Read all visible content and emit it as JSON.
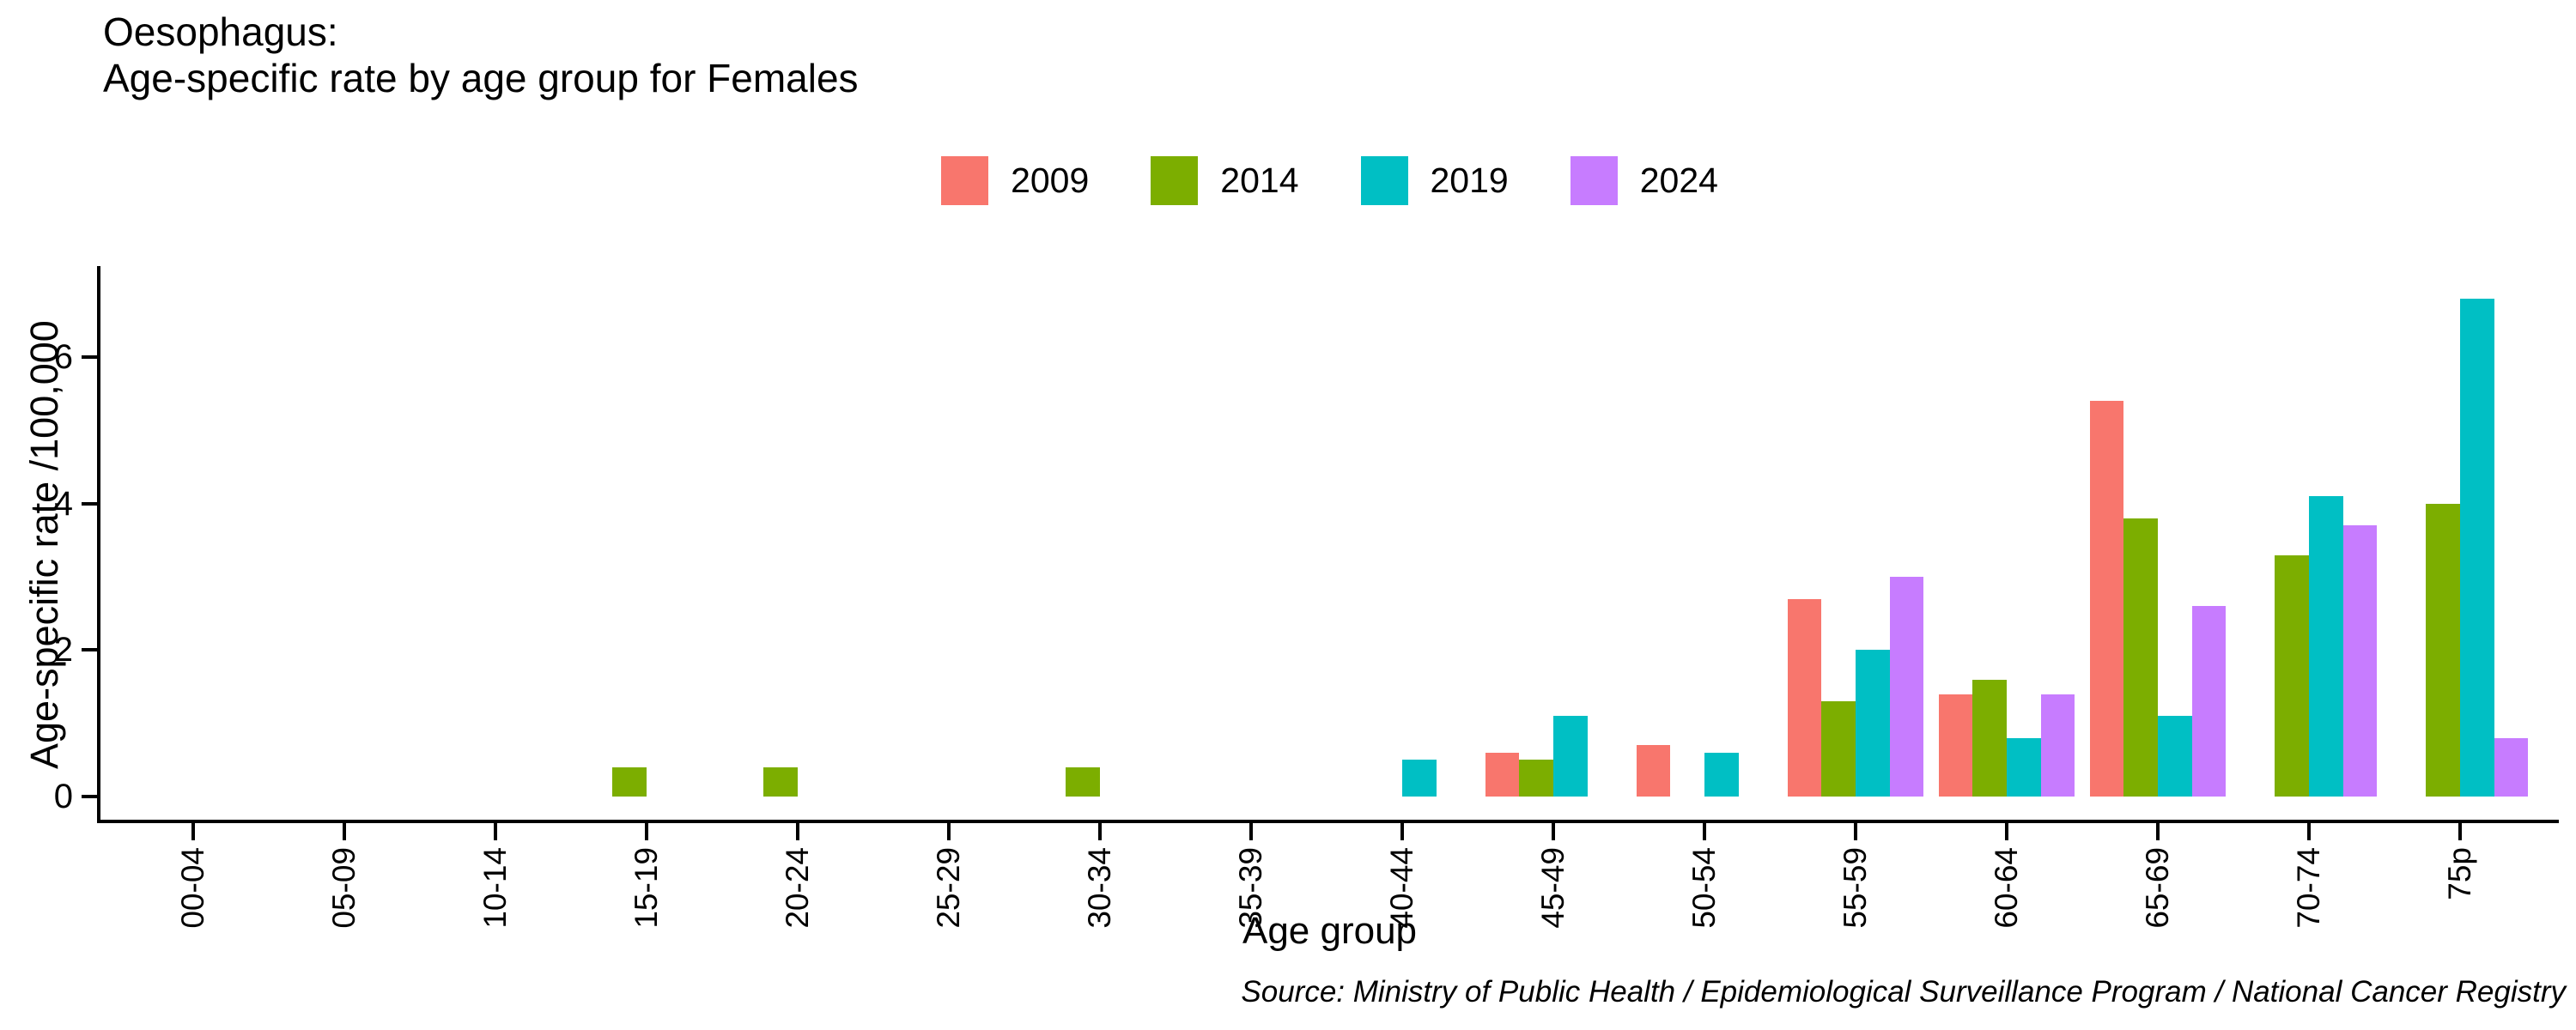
{
  "title": {
    "line1": "Oesophagus:",
    "line2": "Age-specific rate by age group for Females"
  },
  "source": "Source: Ministry of Public Health / Epidemiological Surveillance Program / National Cancer Registry",
  "chart_data": {
    "type": "bar",
    "title": "Oesophagus: Age-specific rate by age group for Females",
    "xlabel": "Age group",
    "ylabel": "Age-specific rate /100,000",
    "grid": false,
    "legend_position": "top-center",
    "ylim": [
      0,
      7.2
    ],
    "yticks": [
      0,
      2,
      4,
      6
    ],
    "categories": [
      "00-04",
      "05-09",
      "10-14",
      "15-19",
      "20-24",
      "25-29",
      "30-34",
      "35-39",
      "40-44",
      "45-49",
      "50-54",
      "55-59",
      "60-64",
      "65-69",
      "70-74",
      "75p"
    ],
    "series": [
      {
        "name": "2009",
        "color": "#F8766D",
        "values": [
          0,
          0,
          0,
          0,
          0,
          0,
          0,
          0,
          0,
          0.6,
          0.7,
          2.7,
          1.4,
          5.4,
          0,
          0
        ]
      },
      {
        "name": "2014",
        "color": "#7CAE00",
        "values": [
          0,
          0,
          0,
          0.4,
          0.4,
          0,
          0.4,
          0,
          0,
          0.5,
          0,
          1.3,
          1.6,
          3.8,
          3.3,
          4.0
        ]
      },
      {
        "name": "2019",
        "color": "#00BFC4",
        "values": [
          0,
          0,
          0,
          0,
          0,
          0,
          0,
          0,
          0.5,
          1.1,
          0.6,
          2.0,
          0.8,
          1.1,
          4.1,
          6.8
        ]
      },
      {
        "name": "2024",
        "color": "#C77CFF",
        "values": [
          0,
          0,
          0,
          0,
          0,
          0,
          0,
          0,
          0,
          0,
          0,
          3.0,
          1.4,
          2.6,
          3.7,
          0.8
        ]
      }
    ]
  }
}
